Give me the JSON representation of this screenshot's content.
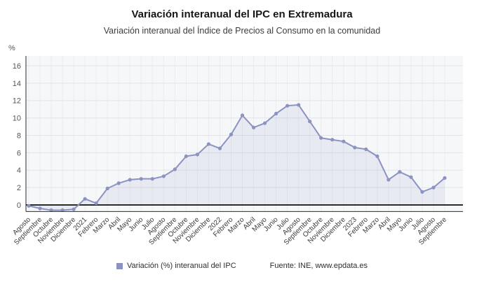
{
  "page": {
    "title": "Variación interanual del IPC en Extremadura",
    "subtitle": "Variación interanual del Índice de Precios al Consumo en la comunidad"
  },
  "footer": {
    "source": "Fuente: INE, www.epdata.es"
  },
  "legend": {
    "label": "Variación (%) interanual del IPC"
  },
  "colors": {
    "series": "#8b93c3",
    "area_fill": "rgba(139,147,195,0.13)",
    "plot_bg": "#f6f7f9",
    "grid_h": "#e1e4e9",
    "grid_v": "#eaecef",
    "axis": "#2b2b2b",
    "tick_text": "#555555",
    "label_text": "#3a3a3a"
  },
  "chart_data": {
    "type": "line",
    "title": "Variación interanual del IPC en Extremadura",
    "subtitle": "Variación interanual del Índice de Precios al Consumo en la comunidad",
    "ylabel": "%",
    "xlabel": "",
    "ylim": [
      -0.75,
      16.9
    ],
    "yticks": [
      0,
      2,
      4,
      6,
      8,
      10,
      12,
      14,
      16
    ],
    "grid": true,
    "legend_position": "bottom",
    "categories": [
      "Agosto",
      "Septiembre",
      "Octubre",
      "Noviembre",
      "Diciembre",
      "2021",
      "Febrero",
      "Marzo",
      "Abril",
      "Mayo",
      "Junio",
      "Julio",
      "Agosto",
      "Septiembre",
      "Octubre",
      "Noviembre",
      "Diciembre",
      "2022",
      "Febrero",
      "Marzo",
      "Abril",
      "Mayo",
      "Junio",
      "Julio",
      "Agosto",
      "Septiembre",
      "Octubre",
      "Noviembre",
      "Diciembre",
      "2023",
      "Febrero",
      "Marzo",
      "Abril",
      "Mayo",
      "Junio",
      "Julio",
      "Agosto",
      "Septiembre"
    ],
    "series": [
      {
        "name": "Variación (%) interanual del IPC",
        "values": [
          -0.1,
          -0.4,
          -0.6,
          -0.6,
          -0.5,
          0.7,
          0.2,
          1.9,
          2.5,
          2.9,
          3.0,
          3.0,
          3.3,
          4.1,
          5.6,
          5.8,
          7.0,
          6.5,
          8.1,
          10.3,
          8.9,
          9.4,
          10.5,
          11.4,
          11.5,
          9.6,
          7.7,
          7.5,
          7.3,
          6.6,
          6.4,
          5.6,
          2.9,
          3.8,
          3.2,
          1.5,
          2.0,
          3.1
        ]
      }
    ]
  }
}
